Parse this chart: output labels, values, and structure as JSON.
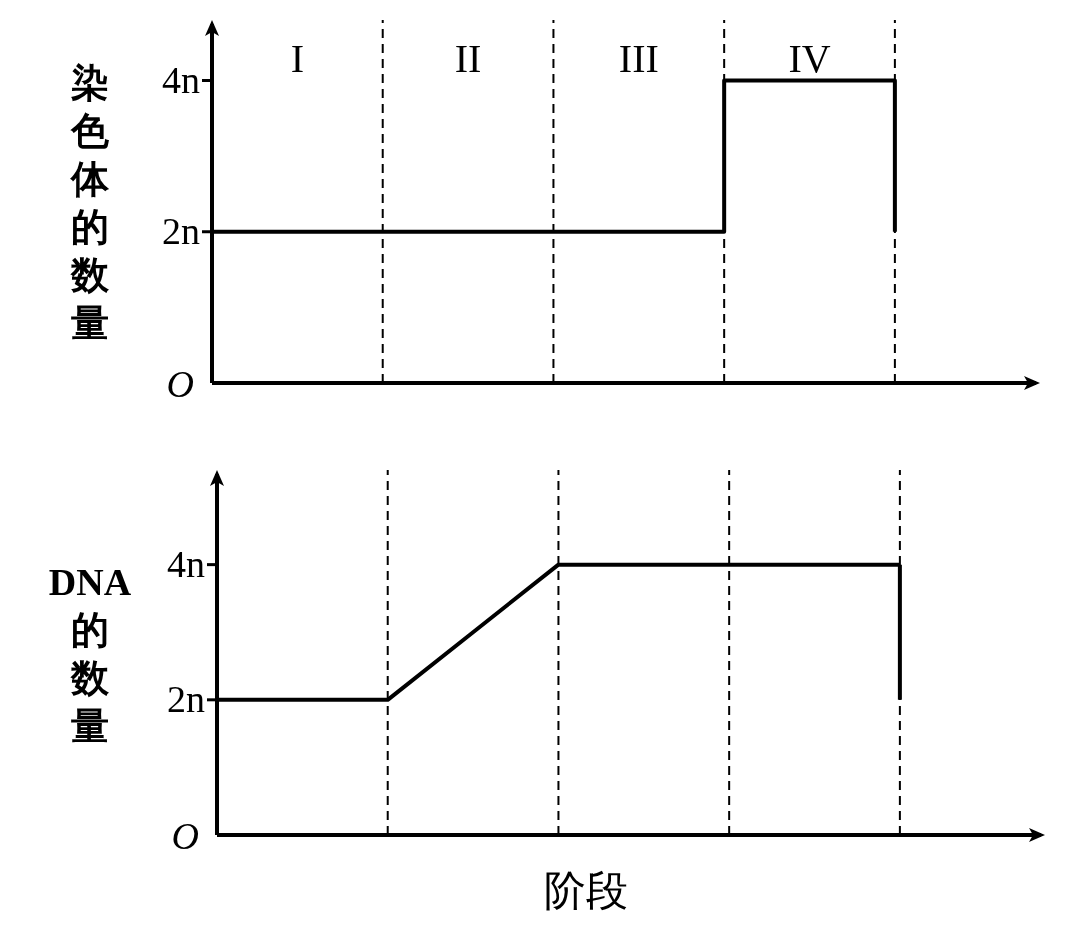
{
  "chart_data": [
    {
      "type": "step",
      "ylabel": "染色体的数量",
      "categories": [
        null,
        "I",
        null,
        "II",
        null,
        "III",
        null,
        "IV",
        null
      ],
      "ylim": [
        0,
        4.8
      ],
      "yticks": [
        {
          "value": 0,
          "label": "O"
        },
        {
          "value": 2,
          "label": "2n"
        },
        {
          "value": 4,
          "label": "4n"
        }
      ],
      "series": [
        {
          "color": "#000000",
          "values": [
            2,
            2,
            2,
            2,
            2,
            2,
            4,
            4,
            2
          ]
        }
      ],
      "grid": "x",
      "marker": "none",
      "line_style": "solid"
    },
    {
      "type": "line",
      "ylabel": "DNA的数量",
      "xlabel": "阶段",
      "categories": [
        null,
        null,
        null,
        null,
        null,
        null,
        null,
        null,
        null
      ],
      "ylim": [
        0,
        5.4
      ],
      "yticks": [
        {
          "value": 0,
          "label": "O"
        },
        {
          "value": 2,
          "label": "2n"
        },
        {
          "value": 4,
          "label": "4n"
        }
      ],
      "series": [
        {
          "color": "#000000",
          "values": [
            2,
            2,
            2,
            3,
            4,
            4,
            4,
            4,
            4
          ],
          "errors": [
            null,
            null,
            null,
            null,
            null,
            null,
            null,
            null,
            [
              2,
              4
            ]
          ]
        }
      ],
      "grid": "x",
      "marker": "none",
      "line_style": "solid"
    }
  ]
}
